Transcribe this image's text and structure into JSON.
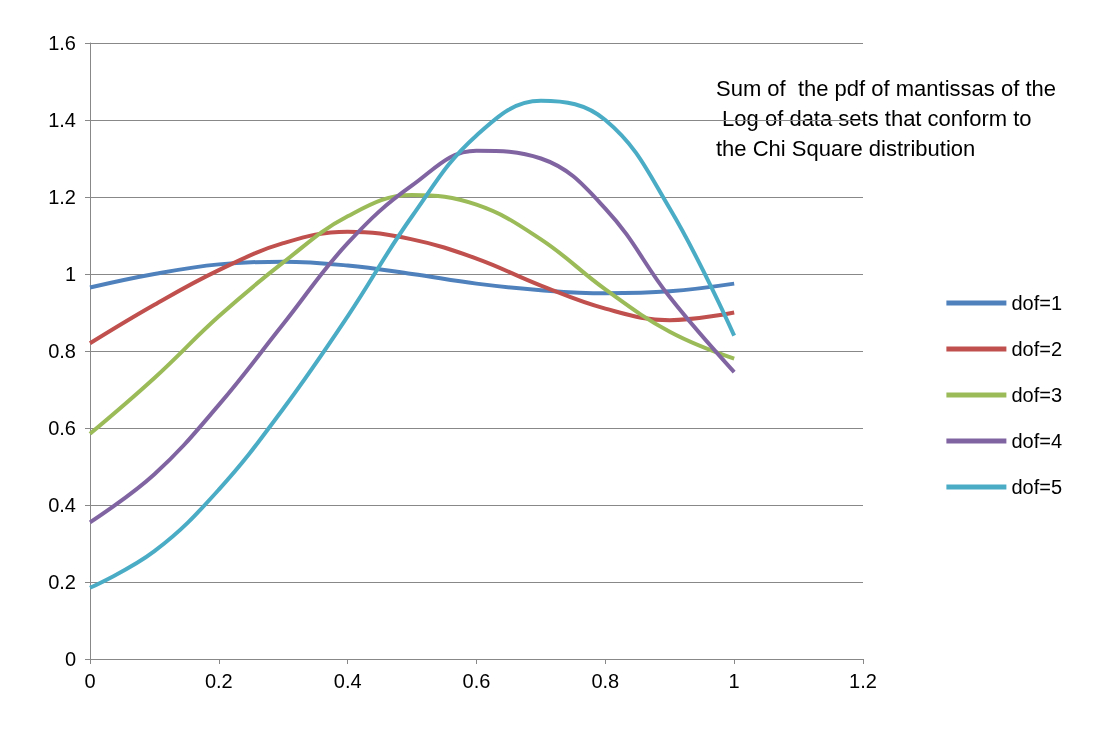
{
  "chart_data": {
    "type": "line",
    "x": [
      0,
      0.1,
      0.2,
      0.3,
      0.4,
      0.5,
      0.6,
      0.7,
      0.8,
      0.9,
      1.0
    ],
    "series": [
      {
        "name": "dof=1",
        "color": "#4f81bd",
        "values": [
          0.965,
          1.0,
          1.025,
          1.032,
          1.022,
          1.0,
          0.975,
          0.958,
          0.95,
          0.955,
          0.975
        ]
      },
      {
        "name": "dof=2",
        "color": "#c0504d",
        "values": [
          0.82,
          0.92,
          1.01,
          1.08,
          1.11,
          1.09,
          1.04,
          0.97,
          0.91,
          0.88,
          0.9
        ]
      },
      {
        "name": "dof=3",
        "color": "#9bbb59",
        "values": [
          0.585,
          0.73,
          0.89,
          1.03,
          1.15,
          1.205,
          1.18,
          1.09,
          0.96,
          0.85,
          0.78
        ]
      },
      {
        "name": "dof=4",
        "color": "#8064a2",
        "values": [
          0.355,
          0.48,
          0.66,
          0.87,
          1.08,
          1.23,
          1.32,
          1.3,
          1.17,
          0.94,
          0.745
        ]
      },
      {
        "name": "dof=5",
        "color": "#4bacc6",
        "values": [
          0.185,
          0.28,
          0.44,
          0.65,
          0.89,
          1.15,
          1.36,
          1.45,
          1.4,
          1.17,
          0.84
        ]
      }
    ],
    "xlim": [
      0,
      1.2
    ],
    "xticks": [
      0,
      0.2,
      0.4,
      0.6,
      0.8,
      1,
      1.2
    ],
    "ylim": [
      0,
      1.6
    ],
    "yticks": [
      0,
      0.2,
      0.4,
      0.6,
      0.8,
      1,
      1.2,
      1.4,
      1.6
    ],
    "grid": "y",
    "legend": "right",
    "marker": "none",
    "line_style": "solid",
    "annotations": [
      "Sum of  the pdf of mantissas of the Log of data sets that conform to the Chi Square distribution"
    ]
  }
}
